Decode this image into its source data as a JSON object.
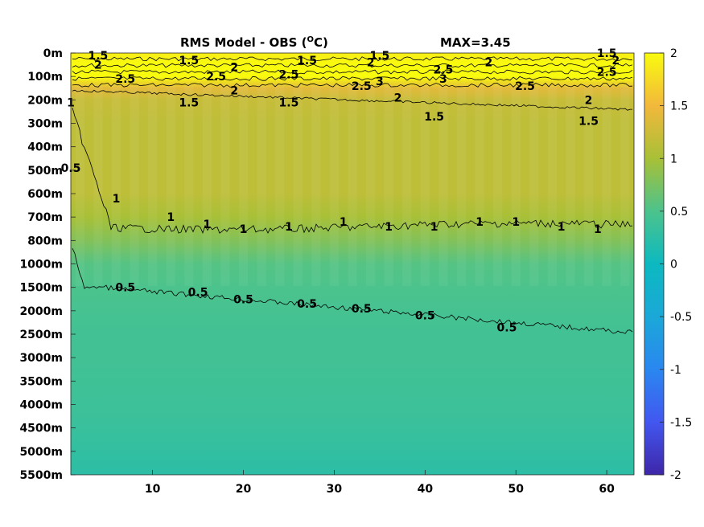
{
  "chart_data": {
    "type": "heatmap",
    "title": "RMS Model - OBS (",
    "title_unit_sup": "O",
    "title_unit_tail": "C)",
    "max_label": "MAX=3.45",
    "x": {
      "ticks": [
        10,
        20,
        30,
        40,
        50,
        60
      ],
      "range": [
        1,
        63
      ]
    },
    "y": {
      "depth_labels": [
        "0m",
        "100m",
        "200m",
        "300m",
        "400m",
        "500m",
        "600m",
        "700m",
        "800m",
        "1000m",
        "1500m",
        "2000m",
        "2500m",
        "3000m",
        "3500m",
        "4000m",
        "4500m",
        "5000m",
        "5500m"
      ]
    },
    "colorbar": {
      "range": [
        -2,
        2
      ],
      "ticks": [
        "2",
        "1.5",
        "1",
        "0.5",
        "0",
        "-0.5",
        "-1",
        "-1.5",
        "-2"
      ]
    },
    "field_profile": {
      "depth_index": [
        0,
        0.5,
        1,
        1.5,
        2,
        3,
        4,
        5,
        6,
        7,
        8,
        9,
        10,
        11,
        12,
        13,
        14,
        15,
        16,
        17,
        18
      ],
      "value": [
        1.9,
        2.6,
        2.0,
        1.4,
        1.2,
        1.15,
        1.15,
        1.15,
        1.15,
        1.0,
        0.8,
        0.55,
        0.5,
        0.45,
        0.42,
        0.42,
        0.4,
        0.38,
        0.35,
        0.3,
        0.25
      ]
    },
    "contours": [
      {
        "level": "1.5",
        "depth_index": 1.8
      },
      {
        "level": "1",
        "depth_index": 7.4
      },
      {
        "level": "0.5",
        "depth_index": 10.5
      }
    ],
    "contour_labels": [
      {
        "text": "1.5",
        "x": 4,
        "depth_index": 0.1
      },
      {
        "text": "1.5",
        "x": 14,
        "depth_index": 0.3
      },
      {
        "text": "1.5",
        "x": 27,
        "depth_index": 0.3
      },
      {
        "text": "1.5",
        "x": 35,
        "depth_index": 0.1
      },
      {
        "text": "1.5",
        "x": 60,
        "depth_index": 0.0
      },
      {
        "text": "2",
        "x": 4,
        "depth_index": 0.5
      },
      {
        "text": "2",
        "x": 19,
        "depth_index": 0.6
      },
      {
        "text": "2",
        "x": 34,
        "depth_index": 0.4
      },
      {
        "text": "2",
        "x": 47,
        "depth_index": 0.4
      },
      {
        "text": "2",
        "x": 61,
        "depth_index": 0.3
      },
      {
        "text": "2.5",
        "x": 7,
        "depth_index": 1.1
      },
      {
        "text": "2.5",
        "x": 17,
        "depth_index": 1.0
      },
      {
        "text": "2.5",
        "x": 25,
        "depth_index": 0.9
      },
      {
        "text": "2.5",
        "x": 42,
        "depth_index": 0.7
      },
      {
        "text": "2.5",
        "x": 60,
        "depth_index": 0.8
      },
      {
        "text": "2.5",
        "x": 33,
        "depth_index": 1.4
      },
      {
        "text": "2.5",
        "x": 51,
        "depth_index": 1.4
      },
      {
        "text": "3",
        "x": 35,
        "depth_index": 1.2
      },
      {
        "text": "3",
        "x": 42,
        "depth_index": 1.1
      },
      {
        "text": "2",
        "x": 19,
        "depth_index": 1.6
      },
      {
        "text": "2",
        "x": 37,
        "depth_index": 1.9
      },
      {
        "text": "2",
        "x": 58,
        "depth_index": 2.0
      },
      {
        "text": "1.5",
        "x": 14,
        "depth_index": 2.1
      },
      {
        "text": "1.5",
        "x": 25,
        "depth_index": 2.1
      },
      {
        "text": "1.5",
        "x": 41,
        "depth_index": 2.7
      },
      {
        "text": "1.5",
        "x": 58,
        "depth_index": 2.9
      },
      {
        "text": "1",
        "x": 1,
        "depth_index": 2.1
      },
      {
        "text": "0.5",
        "x": 1,
        "depth_index": 4.9
      },
      {
        "text": "1",
        "x": 6,
        "depth_index": 6.2
      },
      {
        "text": "1",
        "x": 12,
        "depth_index": 7.0
      },
      {
        "text": "1",
        "x": 16,
        "depth_index": 7.3
      },
      {
        "text": "1",
        "x": 20,
        "depth_index": 7.5
      },
      {
        "text": "1",
        "x": 25,
        "depth_index": 7.4
      },
      {
        "text": "1",
        "x": 31,
        "depth_index": 7.2
      },
      {
        "text": "1",
        "x": 36,
        "depth_index": 7.4
      },
      {
        "text": "1",
        "x": 41,
        "depth_index": 7.4
      },
      {
        "text": "1",
        "x": 46,
        "depth_index": 7.2
      },
      {
        "text": "1",
        "x": 50,
        "depth_index": 7.2
      },
      {
        "text": "1",
        "x": 55,
        "depth_index": 7.4
      },
      {
        "text": "1",
        "x": 59,
        "depth_index": 7.5
      },
      {
        "text": "0.5",
        "x": 7,
        "depth_index": 10.0
      },
      {
        "text": "0.5",
        "x": 15,
        "depth_index": 10.2
      },
      {
        "text": "0.5",
        "x": 20,
        "depth_index": 10.5
      },
      {
        "text": "0.5",
        "x": 27,
        "depth_index": 10.7
      },
      {
        "text": "0.5",
        "x": 33,
        "depth_index": 10.9
      },
      {
        "text": "0.5",
        "x": 40,
        "depth_index": 11.2
      },
      {
        "text": "0.5",
        "x": 49,
        "depth_index": 11.7
      }
    ]
  }
}
